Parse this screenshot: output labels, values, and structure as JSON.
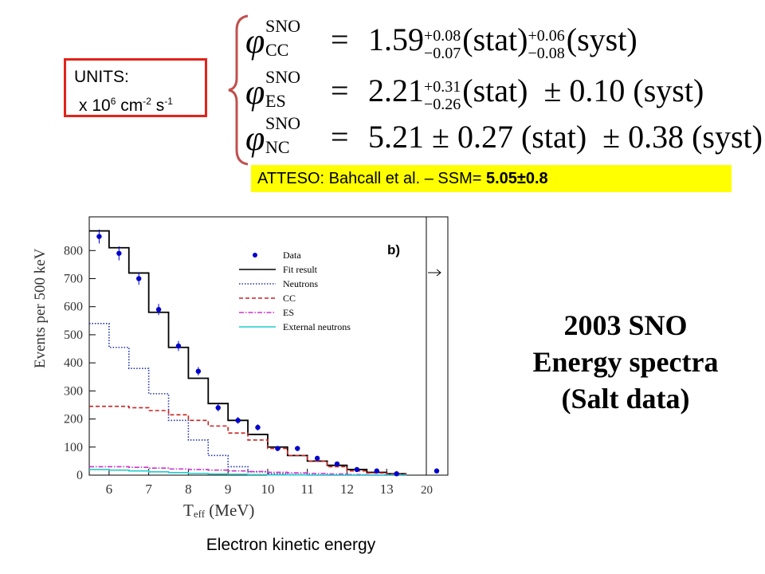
{
  "units_box": {
    "title": "UNITS:",
    "value_prefix": "x 10",
    "exp1": "6",
    "mid": " cm",
    "exp2": "-2",
    "mid2": " s",
    "exp3": "-1"
  },
  "equations": [
    {
      "phi": "φ",
      "sup": "SNO",
      "sub": "CC",
      "equals": "=",
      "value": "1.59",
      "stat_up": "+0.08",
      "stat_down": "−0.07",
      "stat": "(stat)",
      "syst_up": "+0.06",
      "syst_down": "−0.08",
      "syst": "(syst)"
    },
    {
      "phi": "φ",
      "sup": "SNO",
      "sub": "ES",
      "equals": "=",
      "value": "2.21",
      "stat_up": "+0.31",
      "stat_down": "−0.26",
      "stat": "(stat)",
      "syst_err": "± 0.10",
      "syst": "(syst)"
    },
    {
      "phi": "φ",
      "sup": "SNO",
      "sub": "NC",
      "equals": "=",
      "value": "5.21",
      "stat_err": "± 0.27",
      "stat": "(stat)",
      "syst_err": "± 0.38",
      "syst": "(syst)"
    }
  ],
  "atteso": {
    "label": "ATTESO: Bahcall et al. – SSM= ",
    "value": "5.05±0.8"
  },
  "side_title": {
    "line1": "2003 SNO",
    "line2": "Energy spectra",
    "line3": "(Salt data)"
  },
  "x_caption": "Electron kinetic energy",
  "colors": {
    "units_border": "#e2231a",
    "highlight": "#ffff00",
    "brace": "#c0504d",
    "data": "#0000cc",
    "fit": "#000000",
    "neutrons": "#2233aa",
    "cc": "#cc2222",
    "es": "#cc33cc",
    "external": "#22cccc"
  },
  "chart_data": {
    "type": "line",
    "panel_label": "b)",
    "ylabel": "Events per 500 keV",
    "xlabel_main": "T",
    "xlabel_sub": "eff",
    "xlabel_unit": " (MeV)",
    "xlim": [
      5.5,
      14
    ],
    "ylim": [
      0,
      920
    ],
    "x_ticks": [
      "6",
      "7",
      "8",
      "9",
      "10",
      "11",
      "12",
      "13"
    ],
    "x_overflow_label": "20",
    "y_ticks": [
      "0",
      "100",
      "200",
      "300",
      "400",
      "500",
      "600",
      "700",
      "800"
    ],
    "legend_position": "top-right",
    "bin_edges": [
      5.5,
      6.0,
      6.5,
      7.0,
      7.5,
      8.0,
      8.5,
      9.0,
      9.5,
      10.0,
      10.5,
      11.0,
      11.5,
      12.0,
      12.5,
      13.0,
      13.5
    ],
    "data_points": {
      "name": "Data",
      "x": [
        5.75,
        6.25,
        6.75,
        7.25,
        7.75,
        8.25,
        8.75,
        9.25,
        9.75,
        10.25,
        10.75,
        11.25,
        11.75,
        12.25,
        12.75,
        13.25,
        14.0
      ],
      "y": [
        850,
        790,
        700,
        590,
        460,
        370,
        240,
        195,
        170,
        95,
        95,
        60,
        40,
        20,
        15,
        5,
        15
      ],
      "err": [
        25,
        25,
        22,
        20,
        18,
        15,
        13,
        12,
        11,
        9,
        9,
        7,
        6,
        4,
        4,
        3,
        3
      ]
    },
    "series": [
      {
        "name": "Fit result",
        "style": "solid",
        "values": [
          870,
          810,
          720,
          580,
          455,
          345,
          255,
          195,
          145,
          100,
          70,
          50,
          35,
          20,
          10,
          5
        ]
      },
      {
        "name": "Neutrons",
        "style": "dotted",
        "values": [
          540,
          455,
          380,
          290,
          195,
          125,
          70,
          30,
          12,
          5,
          2,
          1,
          0,
          0,
          0,
          0
        ]
      },
      {
        "name": "CC",
        "style": "dashed",
        "values": [
          245,
          245,
          240,
          230,
          215,
          195,
          175,
          150,
          125,
          95,
          70,
          50,
          30,
          15,
          8,
          3
        ]
      },
      {
        "name": "ES",
        "style": "dashdot",
        "values": [
          30,
          30,
          28,
          25,
          22,
          20,
          18,
          15,
          13,
          10,
          8,
          6,
          4,
          2,
          1,
          0
        ]
      },
      {
        "name": "External neutrons",
        "style": "solid",
        "values": [
          20,
          18,
          15,
          12,
          9,
          6,
          4,
          3,
          2,
          1,
          1,
          0,
          0,
          0,
          0,
          0
        ]
      }
    ]
  }
}
